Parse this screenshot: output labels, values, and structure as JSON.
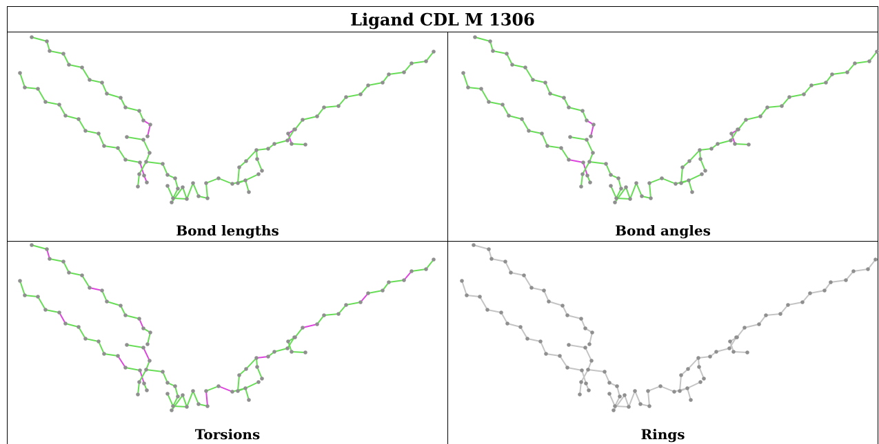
{
  "title": "Ligand CDL M 1306",
  "panels": [
    {
      "caption": "Bond lengths"
    },
    {
      "caption": "Bond angles"
    },
    {
      "caption": "Torsions"
    },
    {
      "caption": "Rings"
    }
  ],
  "colors": {
    "good_bond": "#66dd55",
    "outlier_bond": "#dd44dd",
    "neutral_bond": "#c4c4c4",
    "atom": "#8f8f8f"
  }
}
